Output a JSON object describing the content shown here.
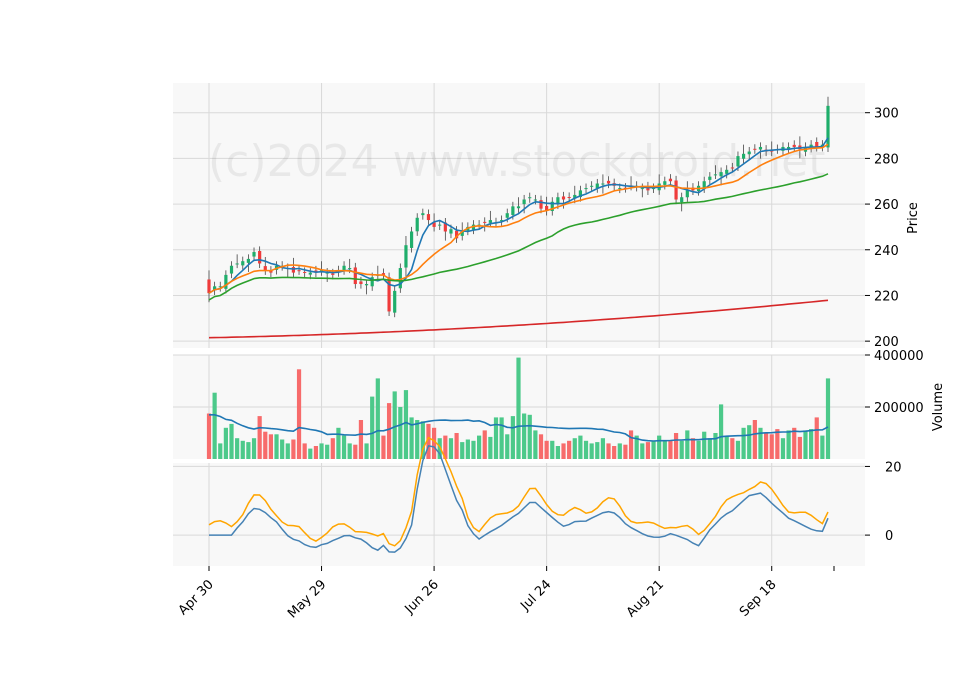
{
  "chart_data": {
    "type": "candlestick",
    "watermark": "(c)2024 www.stockdroid.net",
    "colors": {
      "up": "#1fae6b",
      "down": "#ef3b3b",
      "vol_up": "#4cc98a",
      "vol_down": "#f76b6b",
      "ma_blue": "#1f77b4",
      "ma_orange": "#ff7f0e",
      "ma_green": "#2ca02c",
      "ma_red": "#d62728",
      "osc_fast": "#4682b4",
      "osc_slow": "#ffa500",
      "grid": "#d9d9d9",
      "panel": "#f8f8f8"
    },
    "date_labels": [
      "Apr 30",
      "May 29",
      "Jun 26",
      "Jul 24",
      "Aug 21",
      "Sep 18"
    ],
    "date_label_index": [
      0,
      20,
      40,
      60,
      80,
      100
    ],
    "price_panel": {
      "ylabel": "Price",
      "ylim": [
        197,
        313
      ],
      "ticks": [
        200,
        220,
        240,
        260,
        280,
        300
      ]
    },
    "volume_panel": {
      "ylabel": "Volume",
      "ylim": [
        0,
        400000
      ],
      "ticks": [
        200000,
        400000
      ],
      "tick_labels": [
        "200000",
        "400000"
      ]
    },
    "oscillator_panel": {
      "ylim": [
        -9,
        21
      ],
      "ticks": [
        0,
        20
      ],
      "tick_labels": [
        "0",
        "20"
      ]
    },
    "closes": [
      221,
      224,
      224,
      229,
      233,
      234,
      235,
      236,
      239,
      234,
      231,
      230,
      233,
      233,
      232,
      230,
      231,
      230,
      230,
      230,
      231,
      230,
      229,
      231,
      233,
      232,
      225,
      225,
      225,
      228,
      229,
      229,
      213,
      222,
      232,
      242,
      248,
      254,
      256,
      253,
      250,
      251,
      248,
      249,
      245,
      248,
      250,
      251,
      251,
      252,
      253,
      252,
      253,
      256,
      259,
      259,
      262,
      263,
      262,
      258,
      257,
      261,
      263,
      262,
      263,
      264,
      266,
      267,
      268,
      269,
      269,
      269,
      268,
      267,
      267,
      268,
      268,
      267,
      266,
      267,
      269,
      270,
      270,
      262,
      263,
      266,
      266,
      268,
      270,
      272,
      273,
      274,
      275,
      276,
      281,
      282,
      283,
      284,
      285,
      283,
      283,
      284,
      285,
      285,
      285,
      284,
      285,
      286,
      285,
      286,
      303
    ],
    "volumes": [
      175000,
      255000,
      60000,
      120000,
      135000,
      80000,
      70000,
      65000,
      80000,
      165000,
      105000,
      95000,
      95000,
      75000,
      60000,
      75000,
      345000,
      60000,
      40000,
      50000,
      60000,
      55000,
      80000,
      120000,
      90000,
      60000,
      55000,
      150000,
      60000,
      240000,
      310000,
      90000,
      215000,
      260000,
      200000,
      265000,
      160000,
      150000,
      145000,
      135000,
      120000,
      80000,
      90000,
      80000,
      100000,
      65000,
      75000,
      70000,
      90000,
      110000,
      85000,
      160000,
      160000,
      95000,
      165000,
      390000,
      175000,
      170000,
      110000,
      95000,
      70000,
      70000,
      50000,
      60000,
      70000,
      80000,
      90000,
      70000,
      60000,
      65000,
      80000,
      60000,
      50000,
      60000,
      55000,
      110000,
      90000,
      60000,
      65000,
      70000,
      90000,
      70000,
      70000,
      100000,
      70000,
      110000,
      80000,
      70000,
      105000,
      80000,
      100000,
      210000,
      90000,
      80000,
      70000,
      120000,
      130000,
      150000,
      120000,
      100000,
      95000,
      115000,
      80000,
      110000,
      120000,
      85000,
      110000,
      115000,
      160000,
      90000,
      310000
    ],
    "moving_averages": [
      "MA short (blue)",
      "MA medium (orange)",
      "MA long (green)",
      "MA 200 (red)"
    ],
    "oscillator_series": [
      "fast line (steel blue)",
      "slow line (orange)"
    ]
  }
}
